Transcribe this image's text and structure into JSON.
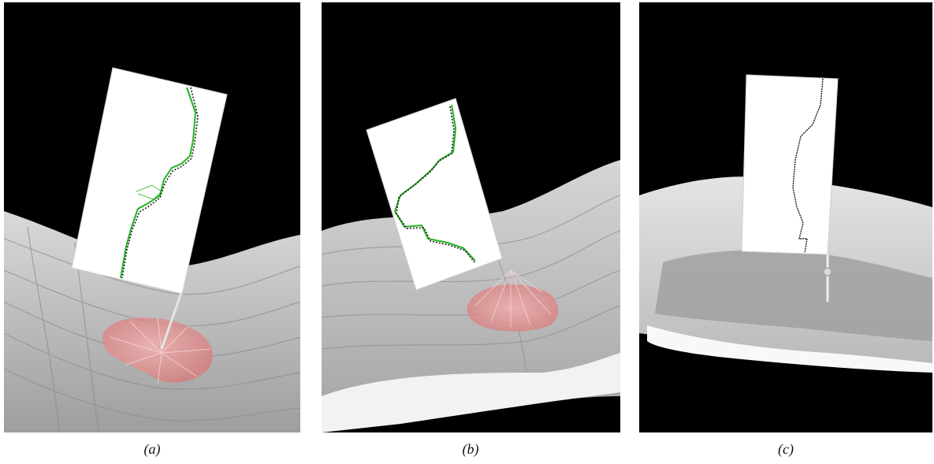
{
  "figure": {
    "panels": [
      {
        "id": "a",
        "caption": "(a)"
      },
      {
        "id": "b",
        "caption": "(b)"
      },
      {
        "id": "c",
        "caption": "(c)"
      }
    ]
  },
  "colors": {
    "background": "#000000",
    "terrain": "#c8c8c8",
    "panel_face": "#ffffff",
    "trace_primary": "#1a1a1a",
    "trace_secondary": "#22b422",
    "footprint": "#e08a8a"
  }
}
